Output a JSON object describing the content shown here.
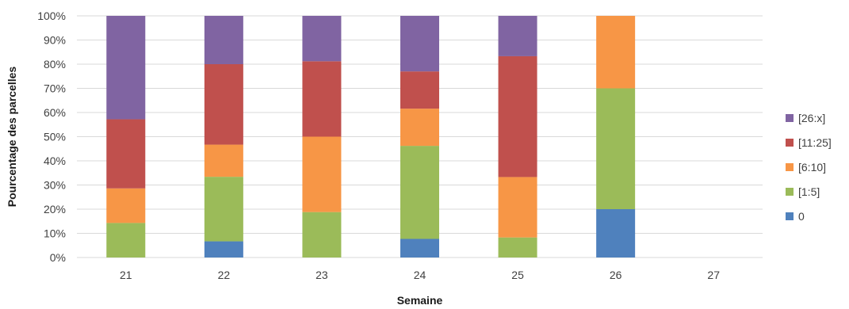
{
  "chart_data": {
    "type": "bar",
    "stacked": true,
    "percent": true,
    "xlabel": "Semaine",
    "ylabel": "Pourcentage des parcelles",
    "ylim": [
      0,
      100
    ],
    "yticks": [
      "0%",
      "10%",
      "20%",
      "30%",
      "40%",
      "50%",
      "60%",
      "70%",
      "80%",
      "90%",
      "100%"
    ],
    "categories": [
      "21",
      "22",
      "23",
      "24",
      "25",
      "26",
      "27"
    ],
    "grid": true,
    "legend_position": "right",
    "series": [
      {
        "name": "0",
        "color": "#4f81bd",
        "values": [
          0,
          6.7,
          0,
          7.7,
          0,
          20,
          0
        ]
      },
      {
        "name": "[1:5]",
        "color": "#9bbb59",
        "values": [
          14.3,
          26.7,
          18.8,
          38.5,
          8.3,
          50,
          0
        ]
      },
      {
        "name": "[6:10]",
        "color": "#f79646",
        "values": [
          14.3,
          13.3,
          31.2,
          15.4,
          25.0,
          30,
          0
        ]
      },
      {
        "name": "[11:25]",
        "color": "#c0504d",
        "values": [
          28.6,
          33.3,
          31.2,
          15.4,
          50.0,
          0,
          0
        ]
      },
      {
        "name": "[26:x]",
        "color": "#8064a2",
        "values": [
          42.8,
          20.0,
          18.8,
          23.0,
          16.7,
          0,
          0
        ]
      }
    ],
    "legend_order": [
      "[26:x]",
      "[11:25]",
      "[6:10]",
      "[1:5]",
      "0"
    ]
  }
}
